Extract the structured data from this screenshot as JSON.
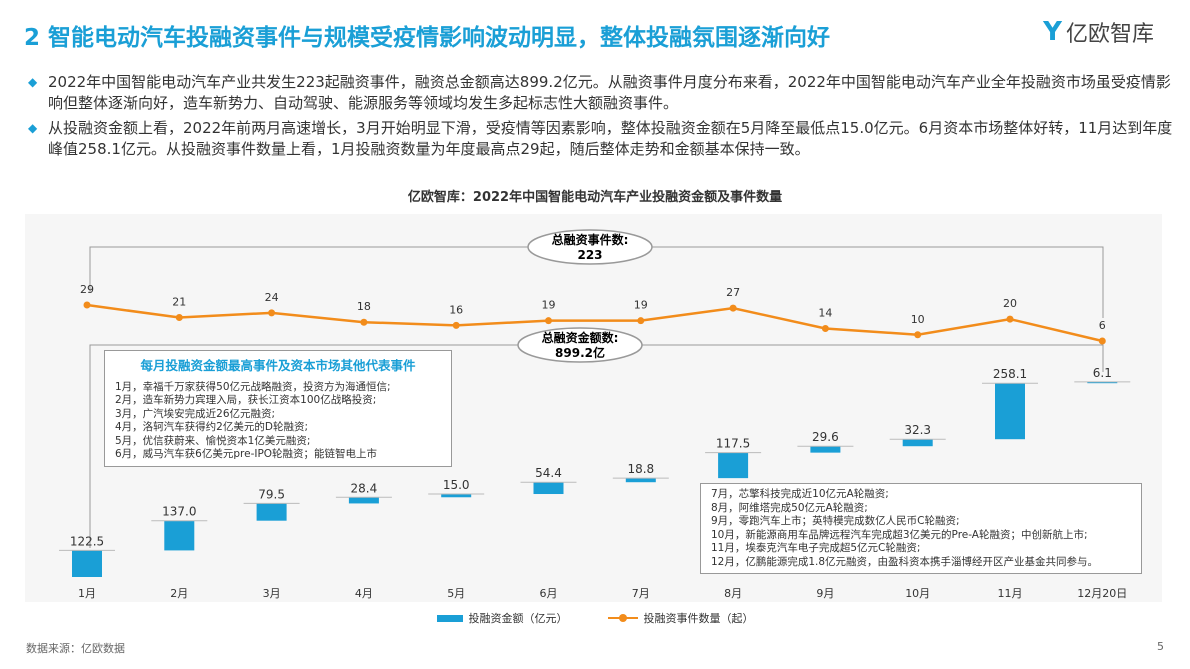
{
  "header": {
    "title": "2 智能电动汽车投融资事件与规模受疫情影响波动明显，整体投融氛围逐渐向好",
    "logo": "亿欧智库"
  },
  "bullets": [
    "2022年中国智能电动汽车产业共发生223起融资事件，融资总金额高达899.2亿元。从融资事件月度分布来看，2022年中国智能电动汽车产业全年投融资市场虽受疫情影响但整体逐渐向好，造车新势力、自动驾驶、能源服务等领域均发生多起标志性大额融资事件。",
    "从投融资金额上看，2022年前两月高速增长，3月开始明显下滑，受疫情等因素影响，整体投融资金额在5月降至最低点15.0亿元。6月资本市场整体好转，11月达到年度峰值258.1亿元。从投融资事件数量上看，1月投融资数量为年度最高点29起，随后整体走势和金额基本保持一致。"
  ],
  "chart_data": {
    "type": "bar",
    "title": "亿欧智库：2022年中国智能电动汽车产业投融资金额及事件数量",
    "categories": [
      "1月",
      "2月",
      "3月",
      "4月",
      "5月",
      "6月",
      "7月",
      "8月",
      "9月",
      "10月",
      "11月",
      "12月20日"
    ],
    "series": [
      {
        "name": "投融资金额（亿元）",
        "kind": "waterfall-bar",
        "color": "#1a9fd6",
        "values": [
          122.5,
          137.0,
          79.5,
          28.4,
          15.0,
          54.4,
          18.8,
          117.5,
          29.6,
          32.3,
          258.1,
          6.1
        ],
        "labels": [
          "122.5",
          "137.0",
          "79.5",
          "28.4",
          "15.0",
          "54.4",
          "18.8",
          "117.5",
          "29.6",
          "32.3",
          "258.1",
          "6.1"
        ]
      },
      {
        "name": "投融资事件数量（起）",
        "kind": "line",
        "color": "#f28c1b",
        "values": [
          29,
          21,
          24,
          18,
          16,
          19,
          19,
          27,
          14,
          10,
          20,
          6
        ]
      }
    ],
    "annotations": {
      "events_total_label": "总融资事件数:",
      "events_total": "223",
      "amount_total_label": "总融资金额数:",
      "amount_total": "899.2亿"
    }
  },
  "box1": {
    "heading": "每月投融资金额最高事件及资本市场其他代表事件",
    "lines": [
      "1月，幸福千万家获得50亿元战略融资，投资方为海通恒信;",
      "2月，造车新势力宾理入局，获长江资本100亿战略投资;",
      "3月，广汽埃安完成近26亿元融资;",
      "4月，洛轲汽车获得约2亿美元的D轮融资;",
      "5月，优信获蔚来、愉悦资本1亿美元融资;",
      "6月，威马汽车获6亿美元pre-IPO轮融资；能链智电上市"
    ]
  },
  "box2": {
    "lines": [
      "7月，芯擎科技完成近10亿元A轮融资;",
      "8月，阿维塔完成50亿元A轮融资;",
      "9月，零跑汽车上市；英特模完成数亿人民币C轮融资;",
      "10月，新能源商用车品牌远程汽车完成超3亿美元的Pre-A轮融资；中创新航上市;",
      "11月，埃泰克汽车电子完成超5亿元C轮融资;",
      "12月，亿鹏能源完成1.8亿元融资，由盈科资本携手淄博经开区产业基金共同参与。"
    ]
  },
  "footer": {
    "source": "数据来源：亿欧数据",
    "page": "5"
  }
}
